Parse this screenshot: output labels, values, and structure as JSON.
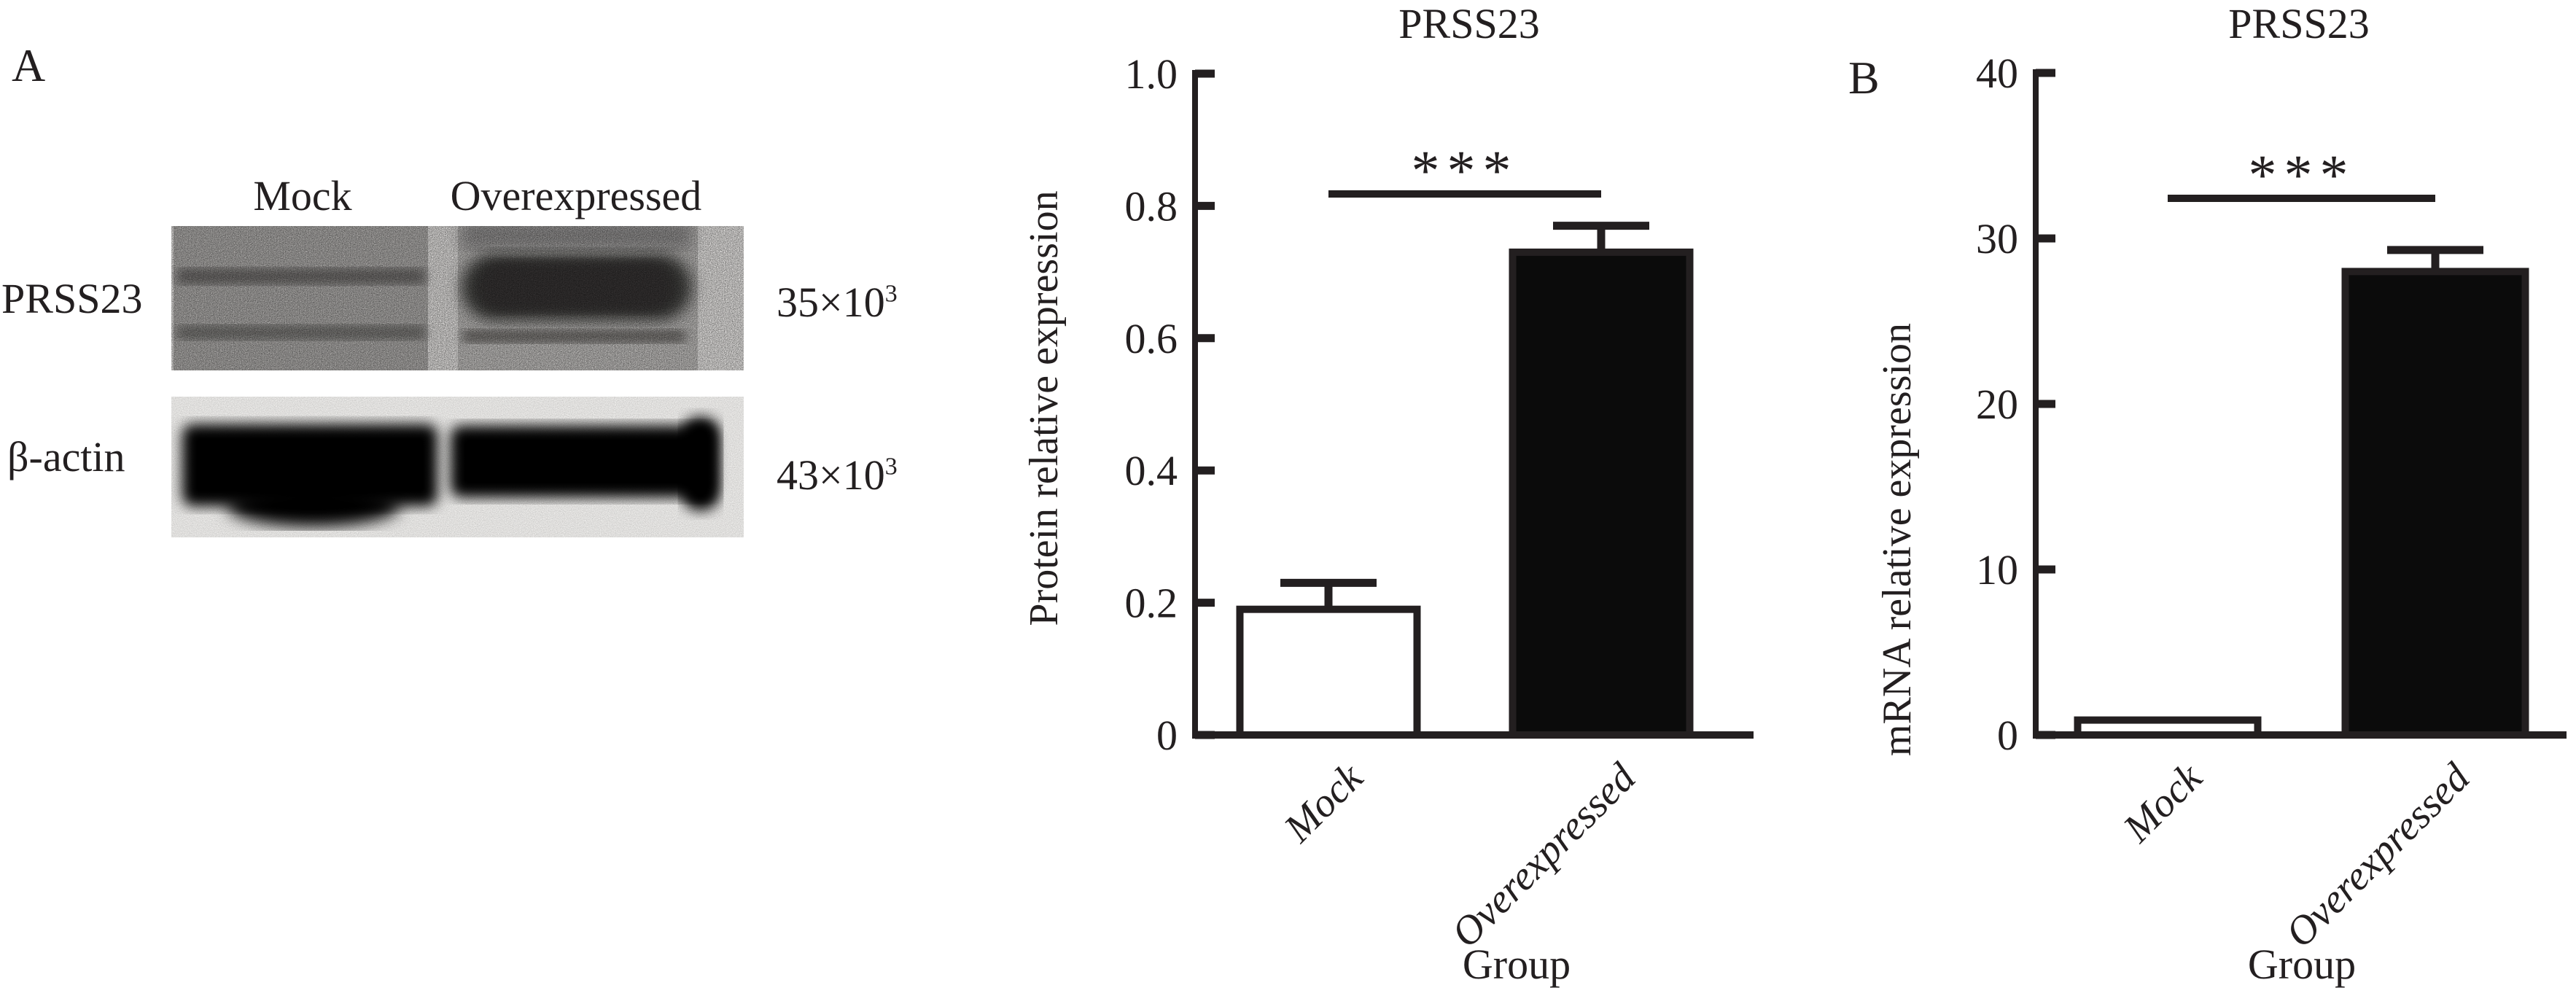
{
  "figure": {
    "panel_a": {
      "label": "A",
      "lane_labels": [
        "Mock",
        "Overexpressed"
      ],
      "rows": [
        {
          "protein": "PRSS23",
          "mw_base": "35×10",
          "mw_exp": "3"
        },
        {
          "protein": "β-actin",
          "mw_base": "43×10",
          "mw_exp": "3"
        }
      ]
    },
    "panel_b_label": "B"
  },
  "chart_data": [
    {
      "type": "bar",
      "title": "PRSS23",
      "xlabel": "Group",
      "ylabel": "Protein relative expression",
      "categories": [
        "Mock",
        "Overexpressed"
      ],
      "values": [
        0.19,
        0.73
      ],
      "error_top": [
        0.23,
        0.77
      ],
      "ylim": [
        0,
        1.0
      ],
      "yticks": [
        0,
        0.2,
        0.4,
        0.6,
        0.8,
        1.0
      ],
      "ytick_labels": [
        "0",
        "0.2",
        "0.4",
        "0.6",
        "0.8",
        "1.0"
      ],
      "bar_colors": [
        "#ffffff",
        "#0b0b0b"
      ],
      "significance": "***",
      "grid": "off",
      "legend": "none"
    },
    {
      "type": "bar",
      "title": "PRSS23",
      "xlabel": "Group",
      "ylabel": "mRNA relative expression",
      "categories": [
        "Mock",
        "Overexpressed"
      ],
      "values": [
        0.9,
        28
      ],
      "error_top": [
        null,
        29.3
      ],
      "ylim": [
        0,
        40
      ],
      "yticks": [
        0,
        10,
        20,
        30,
        40
      ],
      "ytick_labels": [
        "0",
        "10",
        "20",
        "30",
        "40"
      ],
      "bar_colors": [
        "#ffffff",
        "#0b0b0b"
      ],
      "significance": "***",
      "grid": "off",
      "legend": "none"
    }
  ],
  "colors": {
    "ink": "#231f20",
    "background": "#ffffff",
    "blot_dark_band": "#3f3d3c"
  }
}
